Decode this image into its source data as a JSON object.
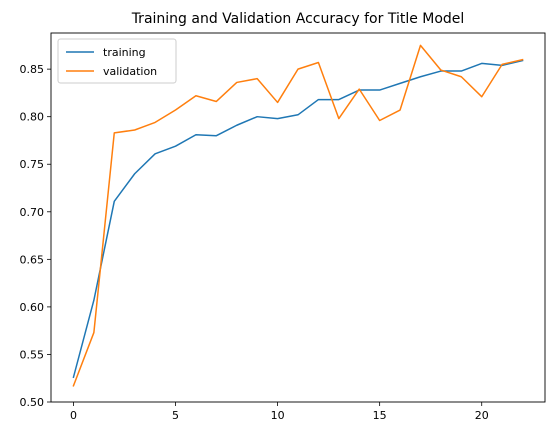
{
  "chart_data": {
    "type": "line",
    "title": "Training and Validation Accuracy for Title Model",
    "xlabel": "",
    "ylabel": "",
    "xlim": [
      -1.1,
      23.1
    ],
    "ylim": [
      0.5,
      0.888
    ],
    "xticks": [
      0,
      5,
      10,
      15,
      20
    ],
    "yticks": [
      0.5,
      0.55,
      0.6,
      0.65,
      0.7,
      0.75,
      0.8,
      0.85
    ],
    "ytick_labels": [
      "0.50",
      "0.55",
      "0.60",
      "0.65",
      "0.70",
      "0.75",
      "0.80",
      "0.85"
    ],
    "x": [
      0,
      1,
      2,
      3,
      4,
      5,
      6,
      7,
      8,
      9,
      10,
      11,
      12,
      13,
      14,
      15,
      16,
      17,
      18,
      19,
      20,
      21,
      22
    ],
    "grid": false,
    "legend_position": "top-left",
    "series": [
      {
        "name": "training",
        "color": "#1f77b4",
        "values": [
          0.526,
          0.607,
          0.711,
          0.74,
          0.761,
          0.769,
          0.781,
          0.78,
          0.791,
          0.8,
          0.798,
          0.802,
          0.818,
          0.818,
          0.828,
          0.828,
          0.835,
          0.842,
          0.848,
          0.848,
          0.856,
          0.854,
          0.859
        ]
      },
      {
        "name": "validation",
        "color": "#ff7f0e",
        "values": [
          0.517,
          0.573,
          0.783,
          0.786,
          0.794,
          0.807,
          0.822,
          0.816,
          0.836,
          0.84,
          0.815,
          0.85,
          0.857,
          0.798,
          0.829,
          0.796,
          0.807,
          0.875,
          0.849,
          0.842,
          0.821,
          0.855,
          0.86
        ]
      }
    ]
  }
}
